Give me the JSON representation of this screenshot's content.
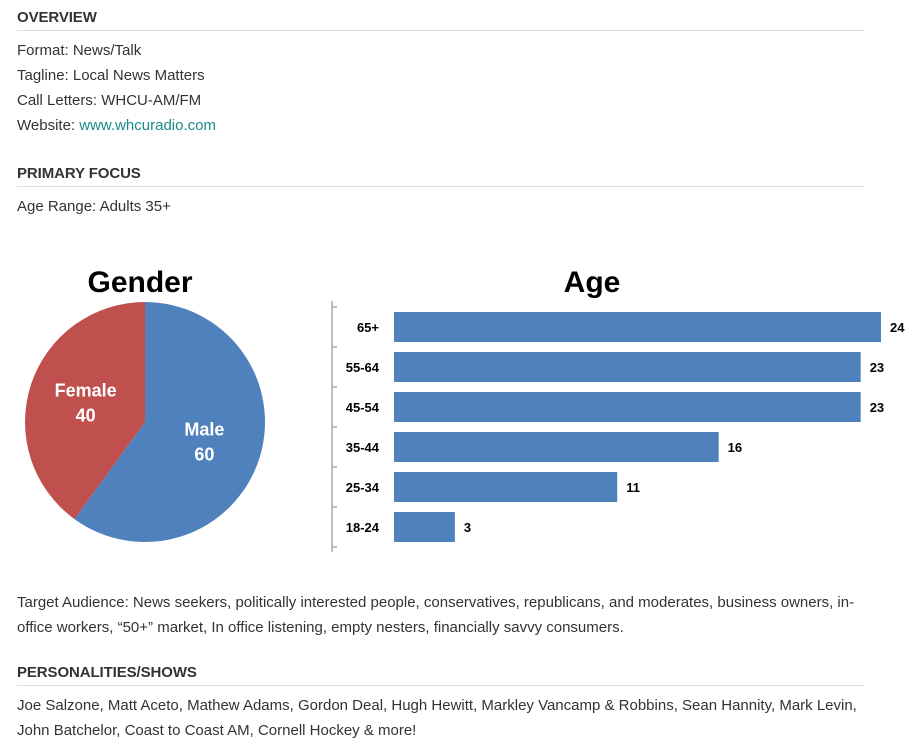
{
  "overview": {
    "heading": "OVERVIEW",
    "format_label": "Format: ",
    "format_value": "News/Talk",
    "tagline_label": "Tagline: ",
    "tagline_value": "Local News Matters",
    "call_label": "Call Letters: ",
    "call_value": "WHCU-AM/FM",
    "website_label": "Website: ",
    "website_value": "www.whcuradio.com"
  },
  "primary_focus": {
    "heading": "PRIMARY FOCUS",
    "age_range": "Age Range: Adults 35+"
  },
  "colors": {
    "male": "#4f81bd",
    "female": "#c0504d",
    "bar": "#4f81bd",
    "link": "#1a8a8a"
  },
  "chart_data": [
    {
      "type": "pie",
      "title": "Gender",
      "categories": [
        "Male",
        "Female"
      ],
      "values": [
        60,
        40
      ]
    },
    {
      "type": "bar",
      "orientation": "horizontal",
      "title": "Age",
      "categories": [
        "65+",
        "55-64",
        "45-54",
        "35-44",
        "25-34",
        "18-24"
      ],
      "values": [
        24,
        23,
        23,
        16,
        11,
        3
      ],
      "xlim": [
        0,
        24
      ]
    }
  ],
  "target_audience": "Target Audience: News seekers, politically interested people, conservatives, republicans, and moderates, business owners, in-office workers, “50+” market, In office listening, empty nesters, financially savvy consumers.",
  "personalities": {
    "heading": "PERSONALITIES/SHOWS",
    "text": "Joe Salzone, Matt Aceto, Mathew Adams, Gordon Deal, Hugh Hewitt, Markley Vancamp & Robbins, Sean Hannity, Mark Levin, John Batchelor, Coast to Coast AM, Cornell Hockey & more!"
  }
}
